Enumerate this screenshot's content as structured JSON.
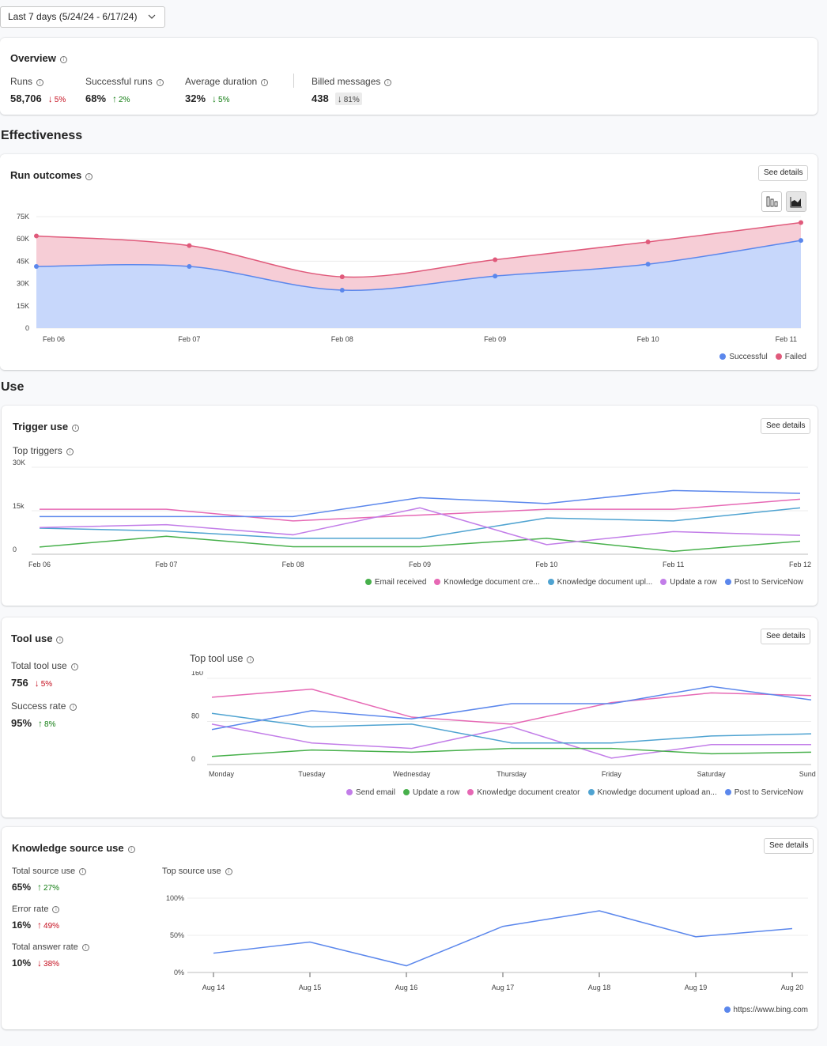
{
  "date_range": "Last 7 days (5/24/24 - 6/17/24)",
  "overview": {
    "title": "Overview",
    "metrics": [
      {
        "label": "Runs",
        "value": "58,706",
        "delta": "5%",
        "dir": "down",
        "tone": "red"
      },
      {
        "label": "Successful runs",
        "value": "68%",
        "delta": "2%",
        "dir": "up",
        "tone": "green"
      },
      {
        "label": "Average duration",
        "value": "32%",
        "delta": "5%",
        "dir": "down",
        "tone": "green"
      },
      {
        "label": "Billed messages",
        "value": "438",
        "delta": "81%",
        "dir": "down",
        "tone": "grey"
      }
    ]
  },
  "effectiveness": {
    "heading": "Effectiveness",
    "run_outcomes": {
      "title": "Run outcomes",
      "see_details": "See details",
      "chart_icons": [
        "bar-chart-icon",
        "area-chart-icon"
      ]
    }
  },
  "use": {
    "heading": "Use",
    "trigger_use": {
      "title": "Trigger use",
      "see_details": "See details",
      "sub_title": "Top triggers"
    },
    "tool_use": {
      "title": "Tool use",
      "see_details": "See details",
      "sub_title": "Top tool use",
      "total_label": "Total tool use",
      "total_value": "756",
      "total_delta": "5%",
      "success_label": "Success rate",
      "success_value": "95%",
      "success_delta": "8%"
    },
    "knowledge_use": {
      "title": "Knowledge source use",
      "see_details": "See details",
      "sub_title": "Top source use",
      "total_label": "Total source use",
      "total_value": "65%",
      "total_delta": "27%",
      "error_label": "Error rate",
      "error_value": "16%",
      "error_delta": "49%",
      "answer_label": "Total answer rate",
      "answer_value": "10%",
      "answer_delta": "38%"
    }
  },
  "colors": {
    "blue": "#5b87ec",
    "red": "#e05a7b",
    "pink": "#e668b4",
    "teal": "#4fa3d1",
    "purple": "#c27de8",
    "green": "#47b04b",
    "arrow_red": "#c50f1f",
    "arrow_green": "#107c10"
  },
  "chart_data": [
    {
      "type": "area",
      "stacked": true,
      "categories": [
        "Feb 06",
        "Feb 07",
        "Feb 08",
        "Feb 09",
        "Feb 10",
        "Feb 11"
      ],
      "ylim": [
        0,
        75000
      ],
      "y_ticks": [
        "75K",
        "60K",
        "45K",
        "30K",
        "15K",
        "0"
      ],
      "series": [
        {
          "name": "Successful",
          "color": "#5b87ec",
          "values": [
            41500,
            41500,
            25500,
            35000,
            43000,
            59000
          ]
        },
        {
          "name": "Failed",
          "color": "#e05a7b",
          "values": [
            20500,
            14000,
            9000,
            11000,
            15000,
            12000
          ]
        }
      ]
    },
    {
      "type": "line",
      "categories": [
        "Feb 06",
        "Feb 07",
        "Feb 08",
        "Feb 09",
        "Feb 10",
        "Feb 11",
        "Feb 12"
      ],
      "ylim": [
        0,
        30000
      ],
      "y_ticks": [
        "30K",
        "15k",
        "0"
      ],
      "series": [
        {
          "name": "Email received",
          "color": "#47b04b",
          "values": [
            2500,
            6200,
            2600,
            2600,
            5500,
            1000,
            4500
          ]
        },
        {
          "name": "Knowledge document cre...",
          "color": "#e668b4",
          "values": [
            15500,
            15500,
            11500,
            13500,
            15500,
            15500,
            19000
          ]
        },
        {
          "name": "Knowledge document upl...",
          "color": "#4fa3d1",
          "values": [
            9000,
            8000,
            5500,
            5500,
            12500,
            11500,
            16000
          ]
        },
        {
          "name": "Update a row",
          "color": "#c27de8",
          "values": [
            9200,
            10200,
            6700,
            16000,
            3300,
            7800,
            6500
          ]
        },
        {
          "name": "Post to ServiceNow",
          "color": "#5b87ec",
          "values": [
            13000,
            13000,
            13000,
            19500,
            17500,
            22000,
            21000
          ]
        }
      ]
    },
    {
      "type": "line",
      "categories": [
        "Monday",
        "Tuesday",
        "Wednesday",
        "Thursday",
        "Friday",
        "Saturday",
        "Sunday"
      ],
      "ylim": [
        0,
        160
      ],
      "y_ticks": [
        "160",
        "80",
        "0"
      ],
      "series": [
        {
          "name": "Send email",
          "color": "#c27de8",
          "values": [
            75,
            40,
            30,
            70,
            12,
            37,
            37
          ]
        },
        {
          "name": "Update a row",
          "color": "#47b04b",
          "values": [
            15,
            27,
            23,
            30,
            30,
            20,
            23
          ]
        },
        {
          "name": "Knowledge document creator",
          "color": "#e668b4",
          "values": [
            125,
            140,
            88,
            75,
            115,
            133,
            128
          ]
        },
        {
          "name": "Knowledge document upload an...",
          "color": "#4fa3d1",
          "values": [
            95,
            70,
            75,
            40,
            40,
            53,
            57
          ]
        },
        {
          "name": "Post to ServiceNow",
          "color": "#5b87ec",
          "values": [
            65,
            100,
            85,
            113,
            113,
            145,
            120
          ]
        }
      ]
    },
    {
      "type": "line",
      "categories": [
        "Aug 14",
        "Aug 15",
        "Aug 16",
        "Aug 17",
        "Aug 18",
        "Aug 19",
        "Aug 20"
      ],
      "ylim": [
        0,
        100
      ],
      "y_ticks": [
        "100%",
        "50%",
        "0%"
      ],
      "series": [
        {
          "name": "https://www.bing.com",
          "color": "#5b87ec",
          "values": [
            26,
            41,
            9,
            62,
            83,
            48,
            59
          ]
        }
      ]
    }
  ]
}
